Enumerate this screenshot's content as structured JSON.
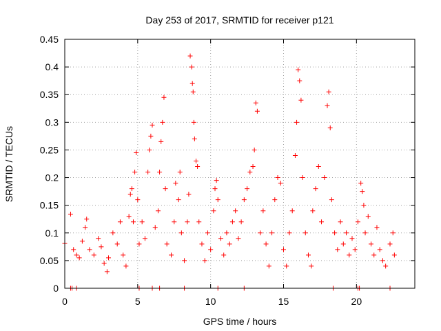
{
  "chart_data": {
    "type": "scatter",
    "title": "Day 253 of 2017, SRMTID for receiver p121",
    "xlabel": "GPS time / hours",
    "ylabel": "SRMTID / TECUs",
    "xlim": [
      0,
      24
    ],
    "ylim": [
      0,
      0.45
    ],
    "xticks": [
      0,
      5,
      10,
      15,
      20
    ],
    "yticks": [
      0,
      0.05,
      0.1,
      0.15,
      0.2,
      0.25,
      0.3,
      0.35,
      0.4,
      0.45
    ],
    "grid": true,
    "marker": "+",
    "color": "#ff0000",
    "series": [
      {
        "name": "SRMTID",
        "points": [
          [
            0.0,
            0.081
          ],
          [
            0.4,
            0.134
          ],
          [
            0.6,
            0.07
          ],
          [
            0.8,
            0.06
          ],
          [
            1.0,
            0.055
          ],
          [
            1.2,
            0.085
          ],
          [
            1.4,
            0.11
          ],
          [
            1.5,
            0.125
          ],
          [
            1.7,
            0.07
          ],
          [
            2.0,
            0.06
          ],
          [
            2.3,
            0.09
          ],
          [
            2.5,
            0.075
          ],
          [
            2.7,
            0.045
          ],
          [
            2.9,
            0.03
          ],
          [
            3.0,
            0.055
          ],
          [
            3.3,
            0.1
          ],
          [
            3.6,
            0.08
          ],
          [
            3.8,
            0.12
          ],
          [
            4.0,
            0.06
          ],
          [
            4.2,
            0.04
          ],
          [
            4.4,
            0.13
          ],
          [
            4.5,
            0.17
          ],
          [
            4.6,
            0.18
          ],
          [
            4.7,
            0.12
          ],
          [
            4.8,
            0.21
          ],
          [
            4.9,
            0.245
          ],
          [
            5.0,
            0.16
          ],
          [
            5.1,
            0.08
          ],
          [
            5.3,
            0.12
          ],
          [
            5.5,
            0.09
          ],
          [
            5.7,
            0.21
          ],
          [
            5.8,
            0.25
          ],
          [
            5.9,
            0.275
          ],
          [
            6.0,
            0.295
          ],
          [
            6.2,
            0.11
          ],
          [
            6.4,
            0.14
          ],
          [
            6.5,
            0.21
          ],
          [
            6.6,
            0.265
          ],
          [
            6.7,
            0.3
          ],
          [
            6.8,
            0.345
          ],
          [
            6.9,
            0.18
          ],
          [
            7.0,
            0.08
          ],
          [
            7.3,
            0.06
          ],
          [
            7.5,
            0.12
          ],
          [
            7.6,
            0.19
          ],
          [
            7.8,
            0.16
          ],
          [
            7.9,
            0.21
          ],
          [
            8.0,
            0.1
          ],
          [
            8.2,
            0.05
          ],
          [
            8.4,
            0.12
          ],
          [
            8.5,
            0.17
          ],
          [
            8.6,
            0.42
          ],
          [
            8.7,
            0.4
          ],
          [
            8.75,
            0.37
          ],
          [
            8.8,
            0.355
          ],
          [
            8.85,
            0.3
          ],
          [
            8.9,
            0.27
          ],
          [
            9.0,
            0.23
          ],
          [
            9.1,
            0.22
          ],
          [
            9.2,
            0.12
          ],
          [
            9.4,
            0.08
          ],
          [
            9.6,
            0.05
          ],
          [
            9.8,
            0.1
          ],
          [
            10.0,
            0.07
          ],
          [
            10.2,
            0.14
          ],
          [
            10.3,
            0.18
          ],
          [
            10.4,
            0.195
          ],
          [
            10.5,
            0.16
          ],
          [
            10.7,
            0.09
          ],
          [
            10.9,
            0.06
          ],
          [
            11.1,
            0.1
          ],
          [
            11.3,
            0.08
          ],
          [
            11.5,
            0.12
          ],
          [
            11.7,
            0.14
          ],
          [
            11.9,
            0.09
          ],
          [
            12.1,
            0.12
          ],
          [
            12.3,
            0.16
          ],
          [
            12.5,
            0.18
          ],
          [
            12.7,
            0.21
          ],
          [
            12.9,
            0.22
          ],
          [
            13.0,
            0.25
          ],
          [
            13.1,
            0.335
          ],
          [
            13.2,
            0.32
          ],
          [
            13.4,
            0.1
          ],
          [
            13.6,
            0.14
          ],
          [
            13.8,
            0.08
          ],
          [
            14.0,
            0.04
          ],
          [
            14.2,
            0.1
          ],
          [
            14.4,
            0.16
          ],
          [
            14.6,
            0.2
          ],
          [
            14.8,
            0.19
          ],
          [
            15.0,
            0.07
          ],
          [
            15.2,
            0.04
          ],
          [
            15.4,
            0.1
          ],
          [
            15.6,
            0.14
          ],
          [
            15.8,
            0.24
          ],
          [
            15.9,
            0.3
          ],
          [
            16.0,
            0.395
          ],
          [
            16.1,
            0.375
          ],
          [
            16.2,
            0.34
          ],
          [
            16.3,
            0.2
          ],
          [
            16.5,
            0.1
          ],
          [
            16.7,
            0.06
          ],
          [
            16.9,
            0.04
          ],
          [
            17.0,
            0.14
          ],
          [
            17.2,
            0.18
          ],
          [
            17.4,
            0.22
          ],
          [
            17.6,
            0.12
          ],
          [
            17.8,
            0.2
          ],
          [
            18.0,
            0.33
          ],
          [
            18.1,
            0.355
          ],
          [
            18.2,
            0.29
          ],
          [
            18.3,
            0.16
          ],
          [
            18.5,
            0.1
          ],
          [
            18.7,
            0.07
          ],
          [
            18.9,
            0.12
          ],
          [
            19.1,
            0.08
          ],
          [
            19.3,
            0.1
          ],
          [
            19.5,
            0.06
          ],
          [
            19.7,
            0.09
          ],
          [
            19.9,
            0.07
          ],
          [
            20.1,
            0.12
          ],
          [
            20.3,
            0.19
          ],
          [
            20.4,
            0.175
          ],
          [
            20.5,
            0.15
          ],
          [
            20.6,
            0.1
          ],
          [
            20.8,
            0.13
          ],
          [
            21.0,
            0.08
          ],
          [
            21.2,
            0.06
          ],
          [
            21.4,
            0.11
          ],
          [
            21.6,
            0.07
          ],
          [
            21.8,
            0.05
          ],
          [
            22.0,
            0.04
          ],
          [
            22.3,
            0.08
          ],
          [
            22.5,
            0.1
          ],
          [
            22.6,
            0.06
          ]
        ]
      },
      {
        "name": "zero-level markers",
        "points": [
          [
            0.4,
            0
          ],
          [
            0.5,
            0
          ],
          [
            0.8,
            0
          ],
          [
            5.1,
            0
          ],
          [
            6.0,
            0
          ],
          [
            6.5,
            0
          ],
          [
            8.2,
            0
          ],
          [
            10.5,
            0
          ],
          [
            12.3,
            0
          ],
          [
            18.4,
            0
          ],
          [
            20.1,
            0
          ],
          [
            20.2,
            0
          ],
          [
            22.3,
            0
          ]
        ]
      }
    ]
  }
}
